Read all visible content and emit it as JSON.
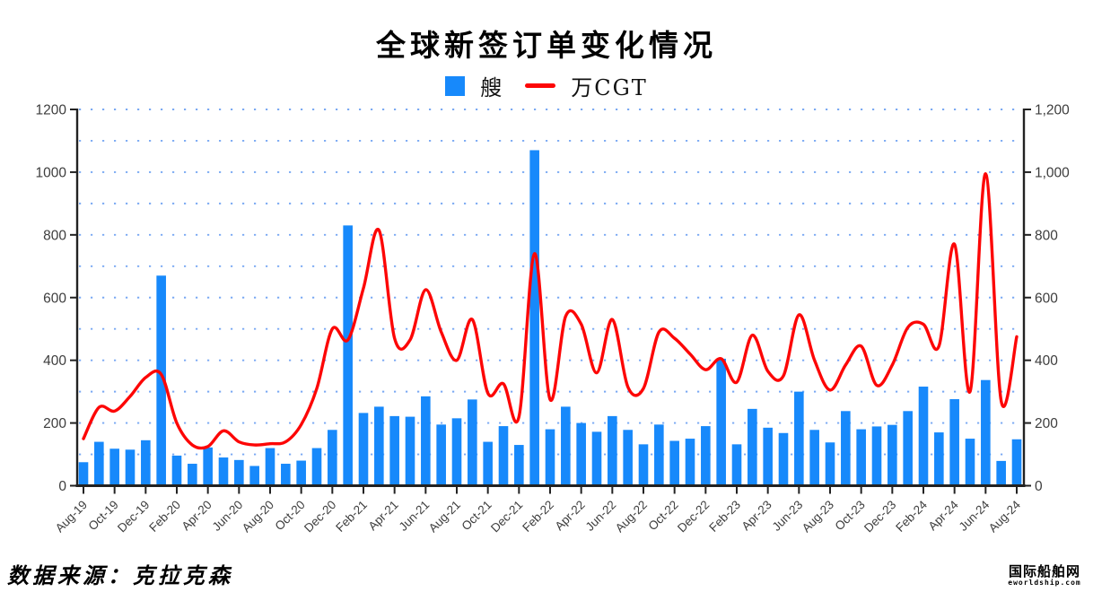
{
  "title": "全球新签订单变化情况",
  "legend": {
    "items": [
      {
        "label": "艘",
        "marker": "square",
        "color": "#1789fb"
      },
      {
        "label": "万CGT",
        "marker": "line",
        "color": "#fd0606"
      }
    ]
  },
  "source_note": "数据来源：克拉克森",
  "watermark": {
    "name": "国际船舶网",
    "domain": "eworldship.com"
  },
  "chart_data": {
    "type": "bar+line",
    "title": "全球新签订单变化情况",
    "x_months": [
      "Aug-19",
      "Sep-19",
      "Oct-19",
      "Nov-19",
      "Dec-19",
      "Jan-20",
      "Feb-20",
      "Mar-20",
      "Apr-20",
      "May-20",
      "Jun-20",
      "Jul-20",
      "Aug-20",
      "Sep-20",
      "Oct-20",
      "Nov-20",
      "Dec-20",
      "Jan-21",
      "Feb-21",
      "Mar-21",
      "Apr-21",
      "May-21",
      "Jun-21",
      "Jul-21",
      "Aug-21",
      "Sep-21",
      "Oct-21",
      "Nov-21",
      "Dec-21",
      "Jan-22",
      "Feb-22",
      "Mar-22",
      "Apr-22",
      "May-22",
      "Jun-22",
      "Jul-22",
      "Aug-22",
      "Sep-22",
      "Oct-22",
      "Nov-22",
      "Dec-22",
      "Jan-23",
      "Feb-23",
      "Mar-23",
      "Apr-23",
      "May-23",
      "Jun-23",
      "Jul-23",
      "Aug-23",
      "Sep-23",
      "Oct-23",
      "Nov-23",
      "Dec-23",
      "Jan-24",
      "Feb-24",
      "Mar-24",
      "Apr-24",
      "May-24",
      "Jun-24",
      "Jul-24",
      "Aug-24"
    ],
    "x_axis_tick_labels": [
      "Aug-19",
      "Oct-19",
      "Dec-19",
      "Feb-20",
      "Apr-20",
      "Jun-20",
      "Aug-20",
      "Oct-20",
      "Dec-20",
      "Feb-21",
      "Apr-21",
      "Jun-21",
      "Aug-21",
      "Oct-21",
      "Dec-21",
      "Feb-22",
      "Apr-22",
      "Jun-22",
      "Aug-22",
      "Oct-22",
      "Dec-22",
      "Feb-23",
      "Apr-23",
      "Jun-23",
      "Aug-23",
      "Oct-23",
      "Dec-23",
      "Feb-24",
      "Apr-24",
      "Jun-24",
      "Aug-24"
    ],
    "series": [
      {
        "name": "艘",
        "type": "bar",
        "y_axis": "left",
        "color": "#1789fb",
        "values": [
          75,
          140,
          118,
          115,
          145,
          670,
          96,
          70,
          122,
          90,
          82,
          63,
          120,
          70,
          80,
          120,
          178,
          830,
          232,
          252,
          222,
          220,
          285,
          195,
          215,
          275,
          140,
          190,
          130,
          1070,
          180,
          252,
          200,
          172,
          222,
          178,
          132,
          195,
          143,
          150,
          190,
          405,
          132,
          245,
          185,
          168,
          300,
          178,
          138,
          238,
          180,
          189,
          194,
          238,
          316,
          170,
          276,
          150,
          337,
          79,
          148
        ]
      },
      {
        "name": "万CGT",
        "type": "line",
        "y_axis": "right",
        "color": "#fd0606",
        "values": [
          150,
          250,
          238,
          285,
          345,
          355,
          200,
          130,
          125,
          175,
          140,
          130,
          134,
          140,
          195,
          310,
          500,
          465,
          630,
          815,
          470,
          465,
          625,
          490,
          400,
          530,
          295,
          325,
          220,
          740,
          275,
          540,
          515,
          360,
          530,
          315,
          310,
          490,
          470,
          420,
          370,
          405,
          330,
          480,
          365,
          350,
          545,
          400,
          305,
          385,
          445,
          320,
          385,
          505,
          515,
          445,
          770,
          300,
          995,
          270,
          475
        ]
      }
    ],
    "left_axis": {
      "min": 0,
      "max": 1200,
      "tick_labels": [
        "0",
        "200",
        "400",
        "600",
        "800",
        "1000",
        "1200"
      ]
    },
    "right_axis": {
      "min": 0,
      "max": 1200,
      "tick_labels": [
        "0",
        "200",
        "400",
        "600",
        "800",
        "1,000",
        "1,200"
      ]
    },
    "gridlines": {
      "orientation": "horizontal",
      "every": 100,
      "style": "dotted",
      "color": "#7aa9f3"
    },
    "legend_position": "top-center"
  }
}
